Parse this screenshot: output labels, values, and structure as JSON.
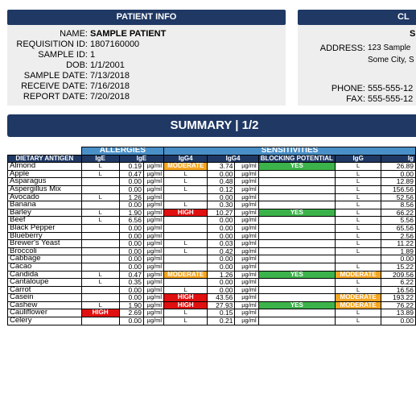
{
  "patient_info": {
    "title": "PATIENT INFO",
    "fields": [
      {
        "label": "NAME:",
        "value": "SAMPLE PATIENT"
      },
      {
        "label": "REQUISITION ID:",
        "value": "1807160000"
      },
      {
        "label": "SAMPLE ID:",
        "value": "1"
      },
      {
        "label": "DOB:",
        "value": "1/1/2001"
      },
      {
        "label": "SAMPLE DATE:",
        "value": "7/13/2018"
      },
      {
        "label": "RECEIVE DATE:",
        "value": "7/16/2018"
      },
      {
        "label": "REPORT DATE:",
        "value": "7/20/2018"
      }
    ]
  },
  "clinic_info": {
    "title": "CL",
    "name_fragment": "S",
    "address_label": "ADDRESS:",
    "address_line1": "123 Sample",
    "address_line2": "Some City, S",
    "phone_label": "PHONE:",
    "phone": "555-555-12",
    "fax_label": "FAX:",
    "fax": "555-555-12"
  },
  "summary": {
    "title": "SUMMARY | 1/2"
  },
  "table": {
    "groups": {
      "allergies": "ALLERGIES",
      "sensitivities": "SENSITIVITIES"
    },
    "headers": {
      "antigen": "DIETARY ANTIGEN",
      "ige_flag": "IgE",
      "ige": "IgE",
      "igg4_flag": "IgG4",
      "igg4": "IgG4",
      "blocking": "BLOCKING POTENTIAL",
      "igg_flag": "IgG",
      "igg": "Ig"
    },
    "unit": "µg/ml",
    "rows": [
      {
        "name": "Almond",
        "ige_flag": "L",
        "ige": "0.19",
        "igg4_flag": "MODERATE",
        "igg4": "3.74",
        "blocking": "YES",
        "igg_flag": "L",
        "igg": "26.89"
      },
      {
        "name": "Apple",
        "ige_flag": "L",
        "ige": "0.47",
        "igg4_flag": "L",
        "igg4": "0.00",
        "blocking": "",
        "igg_flag": "L",
        "igg": "0.00"
      },
      {
        "name": "Asparagus",
        "ige_flag": "",
        "ige": "0.00",
        "igg4_flag": "L",
        "igg4": "0.48",
        "blocking": "",
        "igg_flag": "L",
        "igg": "12.89"
      },
      {
        "name": "Aspergillus Mix",
        "ige_flag": "",
        "ige": "0.00",
        "igg4_flag": "L",
        "igg4": "0.12",
        "blocking": "",
        "igg_flag": "L",
        "igg": "156.56"
      },
      {
        "name": "Avocado",
        "ige_flag": "L",
        "ige": "1.26",
        "igg4_flag": "",
        "igg4": "0.00",
        "blocking": "",
        "igg_flag": "L",
        "igg": "52.56"
      },
      {
        "name": "Banana",
        "ige_flag": "",
        "ige": "0.00",
        "igg4_flag": "L",
        "igg4": "0.30",
        "blocking": "",
        "igg_flag": "L",
        "igg": "8.56"
      },
      {
        "name": "Barley",
        "ige_flag": "L",
        "ige": "1.90",
        "igg4_flag": "HIGH",
        "igg4": "10.27",
        "blocking": "YES",
        "igg_flag": "L",
        "igg": "66.22"
      },
      {
        "name": "Beef",
        "ige_flag": "L",
        "ige": "6.56",
        "igg4_flag": "",
        "igg4": "0.00",
        "blocking": "",
        "igg_flag": "L",
        "igg": "5.56"
      },
      {
        "name": "Black Pepper",
        "ige_flag": "",
        "ige": "0.00",
        "igg4_flag": "",
        "igg4": "0.00",
        "blocking": "",
        "igg_flag": "L",
        "igg": "65.56"
      },
      {
        "name": "Blueberry",
        "ige_flag": "",
        "ige": "0.00",
        "igg4_flag": "",
        "igg4": "0.00",
        "blocking": "",
        "igg_flag": "L",
        "igg": "2.56"
      },
      {
        "name": "Brewer's Yeast",
        "ige_flag": "",
        "ige": "0.00",
        "igg4_flag": "L",
        "igg4": "0.03",
        "blocking": "",
        "igg_flag": "L",
        "igg": "11.22"
      },
      {
        "name": "Broccoli",
        "ige_flag": "",
        "ige": "0.00",
        "igg4_flag": "L",
        "igg4": "0.42",
        "blocking": "",
        "igg_flag": "L",
        "igg": "1.89"
      },
      {
        "name": "Cabbage",
        "ige_flag": "",
        "ige": "0.00",
        "igg4_flag": "",
        "igg4": "0.00",
        "blocking": "",
        "igg_flag": "",
        "igg": "0.00"
      },
      {
        "name": "Cacao",
        "ige_flag": "",
        "ige": "0.00",
        "igg4_flag": "",
        "igg4": "0.00",
        "blocking": "",
        "igg_flag": "L",
        "igg": "15.22"
      },
      {
        "name": "Candida",
        "ige_flag": "L",
        "ige": "0.47",
        "igg4_flag": "MODERATE",
        "igg4": "1.26",
        "blocking": "YES",
        "igg_flag": "MODERATE",
        "igg": "209.56"
      },
      {
        "name": "Cantaloupe",
        "ige_flag": "L",
        "ige": "0.35",
        "igg4_flag": "",
        "igg4": "0.00",
        "blocking": "",
        "igg_flag": "L",
        "igg": "6.22"
      },
      {
        "name": "Carrot",
        "ige_flag": "",
        "ige": "0.00",
        "igg4_flag": "L",
        "igg4": "0.00",
        "blocking": "",
        "igg_flag": "L",
        "igg": "16.56"
      },
      {
        "name": "Casein",
        "ige_flag": "",
        "ige": "0.00",
        "igg4_flag": "HIGH",
        "igg4": "43.56",
        "blocking": "",
        "igg_flag": "MODERATE",
        "igg": "193.22"
      },
      {
        "name": "Cashew",
        "ige_flag": "L",
        "ige": "1.90",
        "igg4_flag": "HIGH",
        "igg4": "27.93",
        "blocking": "YES",
        "igg_flag": "MODERATE",
        "igg": "76.22"
      },
      {
        "name": "Cauliflower",
        "ige_flag": "HIGH",
        "ige": "2.69",
        "igg4_flag": "L",
        "igg4": "0.15",
        "blocking": "",
        "igg_flag": "L",
        "igg": "13.89"
      },
      {
        "name": "Celery",
        "ige_flag": "",
        "ige": "0.00",
        "igg4_flag": "L",
        "igg4": "0.21",
        "blocking": "",
        "igg_flag": "L",
        "igg": "0.00"
      }
    ]
  }
}
